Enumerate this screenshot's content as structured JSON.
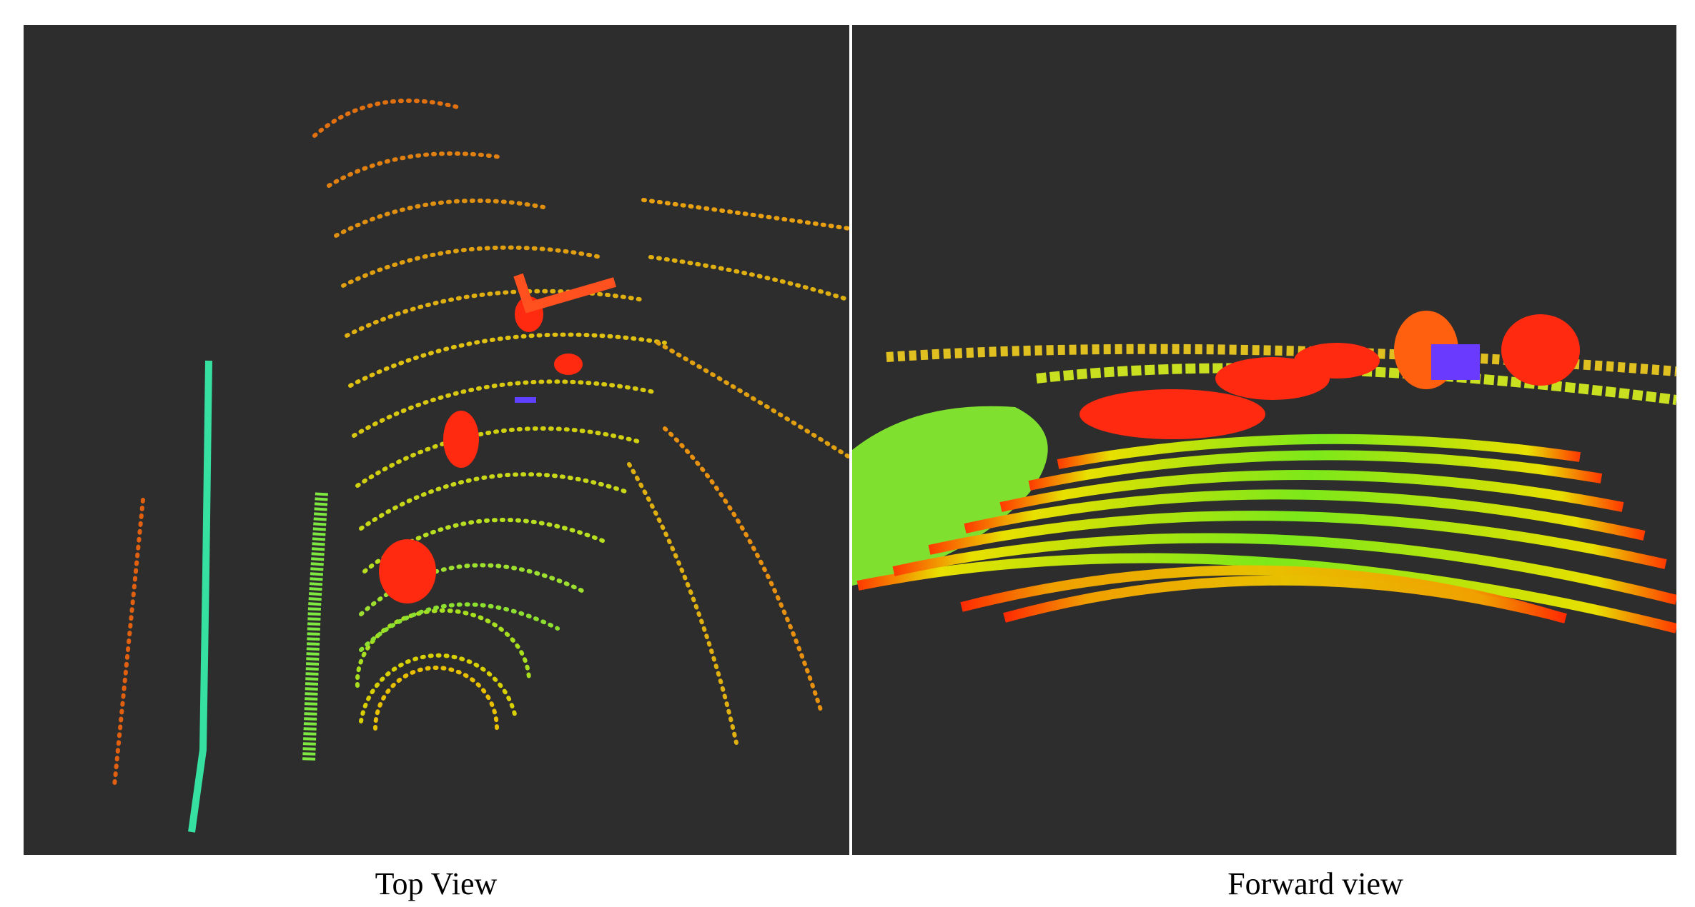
{
  "panels": [
    {
      "caption": "Top View"
    },
    {
      "caption": "Forward view"
    }
  ]
}
